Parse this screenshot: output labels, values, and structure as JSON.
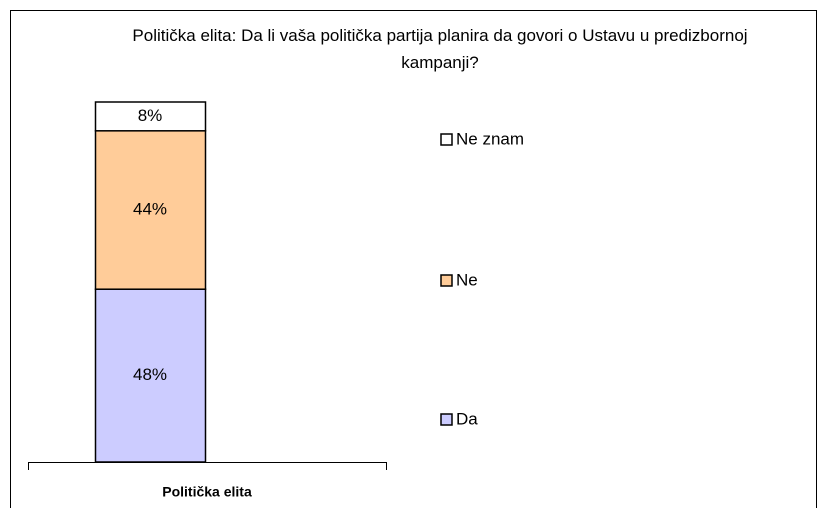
{
  "chart_data": {
    "type": "stacked_bar",
    "title": "Politička elita: Da li vaša politička partija planira da govori o Ustavu u predizbornoj kampanji?",
    "categories": [
      "Politička elita"
    ],
    "series": [
      {
        "name": "Da",
        "color": "#ccccff",
        "values": [
          48
        ],
        "value_labels": [
          "48%"
        ]
      },
      {
        "name": "Ne",
        "color": "#ffcc99",
        "values": [
          44
        ],
        "value_labels": [
          "44%"
        ]
      },
      {
        "name": "Ne znam",
        "color": "#ffffff",
        "values": [
          8
        ],
        "value_labels": [
          "8%"
        ]
      }
    ],
    "legend": "right"
  }
}
